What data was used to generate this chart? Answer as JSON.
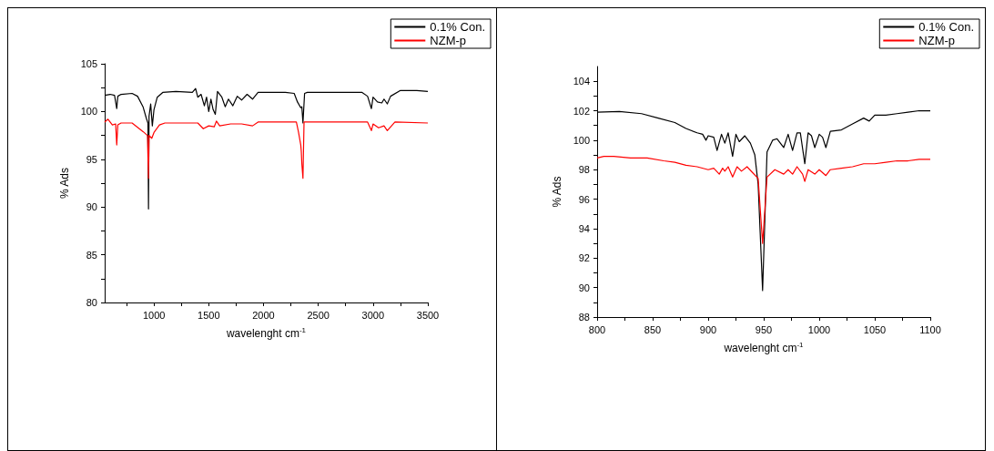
{
  "chart_data": [
    {
      "type": "line",
      "xlabel": "wavelenght cm$^{-1}$",
      "ylabel": "% Ads",
      "xlim": [
        550,
        3500
      ],
      "ylim": [
        80,
        105
      ],
      "xticks": [
        {
          "value": 750,
          "label": null
        },
        1000,
        {
          "value": 1250,
          "label": null
        },
        1500,
        {
          "value": 1750,
          "label": null
        },
        2000,
        {
          "value": 2250,
          "label": null
        },
        2500,
        {
          "value": 2750,
          "label": null
        },
        3000,
        {
          "value": 3250,
          "label": null
        },
        3500
      ],
      "yticks": [
        80,
        {
          "value": 82.5,
          "label": null
        },
        85,
        {
          "value": 87.5,
          "label": null
        },
        90,
        {
          "value": 92.5,
          "label": null
        },
        95,
        {
          "value": 97.5,
          "label": null
        },
        100,
        {
          "value": 102.5,
          "label": null
        },
        105
      ],
      "grid": false,
      "legend": "top right",
      "marker": "none",
      "line_style": "solid",
      "series": [
        {
          "name": "0.1% Con.",
          "color": "#000000",
          "x": [
            550,
            600,
            640,
            660,
            670,
            700,
            800,
            850,
            900,
            930,
            945,
            950,
            955,
            970,
            985,
            1000,
            1030,
            1080,
            1200,
            1350,
            1380,
            1400,
            1430,
            1460,
            1480,
            1500,
            1520,
            1540,
            1560,
            1580,
            1620,
            1650,
            1680,
            1720,
            1760,
            1800,
            1850,
            1900,
            1950,
            2000,
            2200,
            2280,
            2310,
            2340,
            2350,
            2360,
            2375,
            2400,
            2900,
            2950,
            2985,
            3000,
            3040,
            3080,
            3100,
            3130,
            3160,
            3250,
            3400,
            3500
          ],
          "values": [
            101.7,
            101.8,
            101.7,
            100.3,
            101.6,
            101.8,
            101.9,
            101.6,
            100.5,
            99.3,
            98.8,
            89.8,
            99.5,
            100.8,
            98.5,
            100.2,
            101.5,
            102,
            102.1,
            102,
            102.4,
            101.5,
            101.8,
            100.6,
            101.5,
            100,
            101.3,
            100.2,
            99.7,
            102.1,
            101.5,
            100.5,
            101.3,
            100.6,
            101.6,
            101.2,
            101.8,
            101.3,
            102,
            102,
            102,
            101.9,
            101,
            100.4,
            100.5,
            98.8,
            101.9,
            102,
            102,
            101.6,
            100.3,
            101.5,
            101,
            100.9,
            101.3,
            100.8,
            101.6,
            102.2,
            102.2,
            102.1
          ]
        },
        {
          "name": "NZM-p",
          "color": "#ff0000",
          "x": [
            550,
            580,
            620,
            650,
            660,
            670,
            700,
            800,
            900,
            940,
            950,
            955,
            980,
            1000,
            1050,
            1100,
            1400,
            1450,
            1500,
            1550,
            1570,
            1600,
            1700,
            1800,
            1900,
            1950,
            2300,
            2320,
            2340,
            2345,
            2350,
            2360,
            2370,
            2950,
            2985,
            3000,
            3050,
            3100,
            3130,
            3200,
            3500
          ],
          "values": [
            98.9,
            99.2,
            98.6,
            98.7,
            96.5,
            98.6,
            98.8,
            98.8,
            97.9,
            97.5,
            93,
            97.5,
            97.2,
            97.8,
            98.6,
            98.8,
            98.8,
            98.2,
            98.5,
            98.4,
            99,
            98.5,
            98.7,
            98.7,
            98.5,
            98.9,
            98.9,
            97.8,
            96.5,
            95.8,
            94.5,
            93,
            98.9,
            98.9,
            98,
            98.7,
            98.3,
            98.5,
            98,
            98.9,
            98.8
          ]
        }
      ]
    },
    {
      "type": "line",
      "xlabel": "wavelenght cm$^{-1}$",
      "ylabel": "% Ads",
      "xlim": [
        800,
        1100
      ],
      "ylim": [
        88,
        105
      ],
      "xticks": [
        800,
        {
          "value": 825,
          "label": null
        },
        850,
        {
          "value": 875,
          "label": null
        },
        900,
        {
          "value": 925,
          "label": null
        },
        950,
        {
          "value": 975,
          "label": null
        },
        1000,
        {
          "value": 1025,
          "label": null
        },
        1050,
        {
          "value": 1075,
          "label": null
        },
        1100
      ],
      "yticks": [
        88,
        {
          "value": 89,
          "label": null
        },
        90,
        {
          "value": 91,
          "label": null
        },
        92,
        {
          "value": 93,
          "label": null
        },
        94,
        {
          "value": 95,
          "label": null
        },
        96,
        {
          "value": 97,
          "label": null
        },
        98,
        {
          "value": 99,
          "label": null
        },
        100,
        {
          "value": 101,
          "label": null
        },
        102,
        {
          "value": 103,
          "label": null
        },
        104
      ],
      "grid": false,
      "legend": "top right",
      "marker": "none",
      "line_style": "solid",
      "series": [
        {
          "name": "0.1% Con.",
          "color": "#000000",
          "x": [
            800,
            820,
            840,
            855,
            870,
            880,
            890,
            895,
            898,
            900,
            905,
            908,
            912,
            915,
            918,
            922,
            925,
            928,
            933,
            938,
            942,
            945,
            949,
            953,
            958,
            962,
            968,
            972,
            976,
            980,
            983,
            987,
            990,
            993,
            996,
            1000,
            1003,
            1006,
            1010,
            1020,
            1030,
            1040,
            1045,
            1050,
            1060,
            1070,
            1080,
            1090,
            1100
          ],
          "values": [
            101.9,
            101.95,
            101.8,
            101.5,
            101.2,
            100.8,
            100.5,
            100.4,
            100,
            100.3,
            100.2,
            99.3,
            100.4,
            99.8,
            100.5,
            98.9,
            100.4,
            99.9,
            100.3,
            99.8,
            99,
            97,
            89.8,
            99.2,
            100,
            100.1,
            99.5,
            100.4,
            99.3,
            100.5,
            100.5,
            98.4,
            100.5,
            100.3,
            99.5,
            100.4,
            100.2,
            99.5,
            100.6,
            100.7,
            101.1,
            101.5,
            101.3,
            101.7,
            101.7,
            101.8,
            101.9,
            102,
            102
          ]
        },
        {
          "name": "NZM-p",
          "color": "#ff0000",
          "x": [
            800,
            806,
            815,
            830,
            845,
            860,
            870,
            880,
            890,
            900,
            905,
            910,
            913,
            915,
            918,
            922,
            926,
            930,
            935,
            940,
            945,
            949,
            953,
            960,
            968,
            972,
            976,
            980,
            985,
            987,
            990,
            996,
            1000,
            1006,
            1010,
            1020,
            1030,
            1040,
            1050,
            1060,
            1070,
            1080,
            1090,
            1100
          ],
          "values": [
            98.8,
            98.9,
            98.9,
            98.8,
            98.8,
            98.6,
            98.5,
            98.3,
            98.2,
            98,
            98.1,
            97.7,
            98.1,
            97.9,
            98.2,
            97.5,
            98.2,
            97.9,
            98.2,
            97.8,
            97.4,
            93,
            97.5,
            98,
            97.7,
            98,
            97.7,
            98.2,
            97.7,
            97.2,
            98,
            97.7,
            98,
            97.6,
            98,
            98.1,
            98.2,
            98.4,
            98.4,
            98.5,
            98.6,
            98.6,
            98.7,
            98.7
          ]
        }
      ]
    }
  ]
}
